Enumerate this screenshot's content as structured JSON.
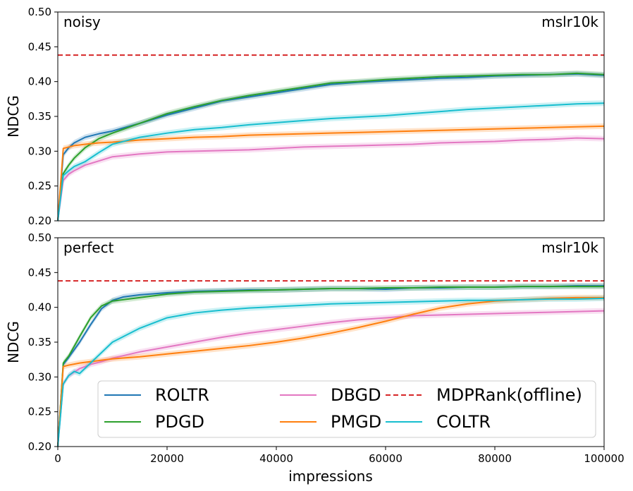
{
  "chart_data": [
    {
      "type": "line",
      "panel_label": "noisy",
      "dataset_label": "mslr10k",
      "ylabel": "NDCG",
      "xlabel": "",
      "xlim": [
        0,
        100000
      ],
      "ylim": [
        0.2,
        0.5
      ],
      "yticks": [
        "0.20",
        "0.25",
        "0.30",
        "0.35",
        "0.40",
        "0.45",
        "0.50"
      ],
      "xticks": [],
      "reference_line": {
        "name": "MDPRank(offline)",
        "value": 0.438,
        "color": "#d62728",
        "style": "dashed"
      },
      "series": [
        {
          "name": "ROLTR",
          "color": "#1f77b4",
          "x": [
            0,
            1000,
            2000,
            3000,
            5000,
            7500,
            10000,
            15000,
            20000,
            25000,
            30000,
            35000,
            40000,
            45000,
            50000,
            55000,
            60000,
            65000,
            70000,
            75000,
            80000,
            85000,
            90000,
            95000,
            100000
          ],
          "y": [
            0.2,
            0.295,
            0.305,
            0.312,
            0.32,
            0.325,
            0.329,
            0.34,
            0.352,
            0.362,
            0.372,
            0.378,
            0.384,
            0.39,
            0.396,
            0.399,
            0.401,
            0.403,
            0.405,
            0.406,
            0.408,
            0.409,
            0.41,
            0.411,
            0.409
          ]
        },
        {
          "name": "PDGD",
          "color": "#2ca02c",
          "x": [
            0,
            1000,
            2000,
            3000,
            5000,
            7500,
            10000,
            15000,
            20000,
            25000,
            30000,
            35000,
            40000,
            45000,
            50000,
            55000,
            60000,
            65000,
            70000,
            75000,
            80000,
            85000,
            90000,
            95000,
            100000
          ],
          "y": [
            0.2,
            0.268,
            0.28,
            0.29,
            0.305,
            0.318,
            0.326,
            0.34,
            0.354,
            0.364,
            0.373,
            0.38,
            0.386,
            0.392,
            0.398,
            0.4,
            0.403,
            0.405,
            0.407,
            0.408,
            0.409,
            0.41,
            0.41,
            0.412,
            0.41
          ]
        },
        {
          "name": "DBGD",
          "color": "#e377c2",
          "x": [
            0,
            1000,
            2000,
            3000,
            5000,
            7500,
            10000,
            15000,
            20000,
            25000,
            30000,
            35000,
            40000,
            45000,
            50000,
            55000,
            60000,
            65000,
            70000,
            75000,
            80000,
            85000,
            90000,
            95000,
            100000
          ],
          "y": [
            0.2,
            0.258,
            0.267,
            0.272,
            0.28,
            0.286,
            0.292,
            0.296,
            0.299,
            0.3,
            0.301,
            0.302,
            0.304,
            0.306,
            0.307,
            0.308,
            0.309,
            0.31,
            0.312,
            0.313,
            0.314,
            0.316,
            0.317,
            0.319,
            0.318
          ]
        },
        {
          "name": "PMGD",
          "color": "#ff7f0e",
          "x": [
            0,
            1000,
            2000,
            3000,
            5000,
            7500,
            10000,
            15000,
            20000,
            25000,
            30000,
            35000,
            40000,
            45000,
            50000,
            55000,
            60000,
            65000,
            70000,
            75000,
            80000,
            85000,
            90000,
            95000,
            100000
          ],
          "y": [
            0.2,
            0.304,
            0.306,
            0.308,
            0.31,
            0.312,
            0.313,
            0.316,
            0.318,
            0.32,
            0.321,
            0.323,
            0.324,
            0.325,
            0.326,
            0.327,
            0.328,
            0.329,
            0.33,
            0.331,
            0.332,
            0.333,
            0.334,
            0.335,
            0.336
          ]
        },
        {
          "name": "COLTR",
          "color": "#17becf",
          "x": [
            0,
            1000,
            2000,
            3000,
            5000,
            7500,
            10000,
            15000,
            20000,
            25000,
            30000,
            35000,
            40000,
            45000,
            50000,
            55000,
            60000,
            65000,
            70000,
            75000,
            80000,
            85000,
            90000,
            95000,
            100000
          ],
          "y": [
            0.2,
            0.265,
            0.272,
            0.278,
            0.285,
            0.298,
            0.31,
            0.32,
            0.326,
            0.331,
            0.334,
            0.338,
            0.341,
            0.344,
            0.347,
            0.349,
            0.351,
            0.354,
            0.357,
            0.36,
            0.362,
            0.364,
            0.366,
            0.368,
            0.369
          ]
        }
      ]
    },
    {
      "type": "line",
      "panel_label": "perfect",
      "dataset_label": "mslr10k",
      "ylabel": "NDCG",
      "xlabel": "impressions",
      "xlim": [
        0,
        100000
      ],
      "ylim": [
        0.2,
        0.5
      ],
      "yticks": [
        "0.20",
        "0.25",
        "0.30",
        "0.35",
        "0.40",
        "0.45",
        "0.50"
      ],
      "xticks": [
        "0",
        "20000",
        "40000",
        "60000",
        "80000",
        "100000"
      ],
      "reference_line": {
        "name": "MDPRank(offline)",
        "value": 0.438,
        "color": "#d62728",
        "style": "dashed"
      },
      "series": [
        {
          "name": "ROLTR",
          "color": "#1f77b4",
          "x": [
            0,
            1000,
            2000,
            4000,
            6000,
            8000,
            10000,
            12000,
            15000,
            20000,
            25000,
            30000,
            35000,
            40000,
            45000,
            50000,
            55000,
            60000,
            65000,
            70000,
            75000,
            80000,
            85000,
            90000,
            95000,
            100000
          ],
          "y": [
            0.2,
            0.318,
            0.328,
            0.35,
            0.375,
            0.398,
            0.41,
            0.415,
            0.418,
            0.421,
            0.423,
            0.424,
            0.425,
            0.425,
            0.426,
            0.427,
            0.427,
            0.426,
            0.428,
            0.428,
            0.429,
            0.429,
            0.43,
            0.43,
            0.431,
            0.431
          ]
        },
        {
          "name": "PDGD",
          "color": "#2ca02c",
          "x": [
            0,
            1000,
            2000,
            4000,
            6000,
            8000,
            10000,
            12000,
            15000,
            20000,
            25000,
            30000,
            35000,
            40000,
            45000,
            50000,
            55000,
            60000,
            65000,
            70000,
            75000,
            80000,
            85000,
            90000,
            95000,
            100000
          ],
          "y": [
            0.2,
            0.32,
            0.33,
            0.358,
            0.385,
            0.402,
            0.409,
            0.411,
            0.414,
            0.419,
            0.422,
            0.423,
            0.424,
            0.425,
            0.426,
            0.427,
            0.427,
            0.428,
            0.428,
            0.429,
            0.429,
            0.429,
            0.43,
            0.43,
            0.43,
            0.43
          ]
        },
        {
          "name": "DBGD",
          "color": "#e377c2",
          "x": [
            0,
            1000,
            2000,
            4000,
            6000,
            8000,
            10000,
            15000,
            20000,
            25000,
            30000,
            35000,
            40000,
            45000,
            50000,
            55000,
            60000,
            65000,
            70000,
            75000,
            80000,
            85000,
            90000,
            95000,
            100000
          ],
          "y": [
            0.2,
            0.29,
            0.302,
            0.312,
            0.318,
            0.322,
            0.327,
            0.336,
            0.343,
            0.35,
            0.357,
            0.363,
            0.368,
            0.373,
            0.378,
            0.382,
            0.385,
            0.388,
            0.389,
            0.39,
            0.391,
            0.392,
            0.393,
            0.394,
            0.395
          ]
        },
        {
          "name": "PMGD",
          "color": "#ff7f0e",
          "x": [
            0,
            1000,
            2000,
            4000,
            6000,
            8000,
            10000,
            15000,
            20000,
            25000,
            30000,
            35000,
            40000,
            45000,
            50000,
            55000,
            60000,
            65000,
            70000,
            75000,
            80000,
            85000,
            90000,
            95000,
            100000
          ],
          "y": [
            0.2,
            0.315,
            0.317,
            0.32,
            0.322,
            0.324,
            0.326,
            0.329,
            0.333,
            0.337,
            0.341,
            0.345,
            0.35,
            0.356,
            0.363,
            0.371,
            0.38,
            0.39,
            0.399,
            0.405,
            0.409,
            0.411,
            0.413,
            0.414,
            0.414
          ]
        },
        {
          "name": "COLTR",
          "color": "#17becf",
          "x": [
            0,
            1000,
            2000,
            3000,
            4000,
            6000,
            8000,
            10000,
            15000,
            20000,
            25000,
            30000,
            35000,
            40000,
            45000,
            50000,
            55000,
            60000,
            65000,
            70000,
            75000,
            80000,
            85000,
            90000,
            95000,
            100000
          ],
          "y": [
            0.2,
            0.29,
            0.302,
            0.308,
            0.305,
            0.32,
            0.335,
            0.35,
            0.37,
            0.385,
            0.392,
            0.396,
            0.399,
            0.401,
            0.403,
            0.405,
            0.406,
            0.407,
            0.408,
            0.409,
            0.41,
            0.41,
            0.411,
            0.412,
            0.412,
            0.413
          ]
        }
      ]
    }
  ],
  "legend": {
    "placement": "lower-right of bottom panel",
    "entries": [
      {
        "name": "ROLTR",
        "color": "#1f77b4",
        "style": "solid"
      },
      {
        "name": "PDGD",
        "color": "#2ca02c",
        "style": "solid"
      },
      {
        "name": "DBGD",
        "color": "#e377c2",
        "style": "solid"
      },
      {
        "name": "PMGD",
        "color": "#ff7f0e",
        "style": "solid"
      },
      {
        "name": "MDPRank(offline)",
        "color": "#d62728",
        "style": "dashed"
      },
      {
        "name": "COLTR",
        "color": "#17becf",
        "style": "solid"
      }
    ]
  }
}
